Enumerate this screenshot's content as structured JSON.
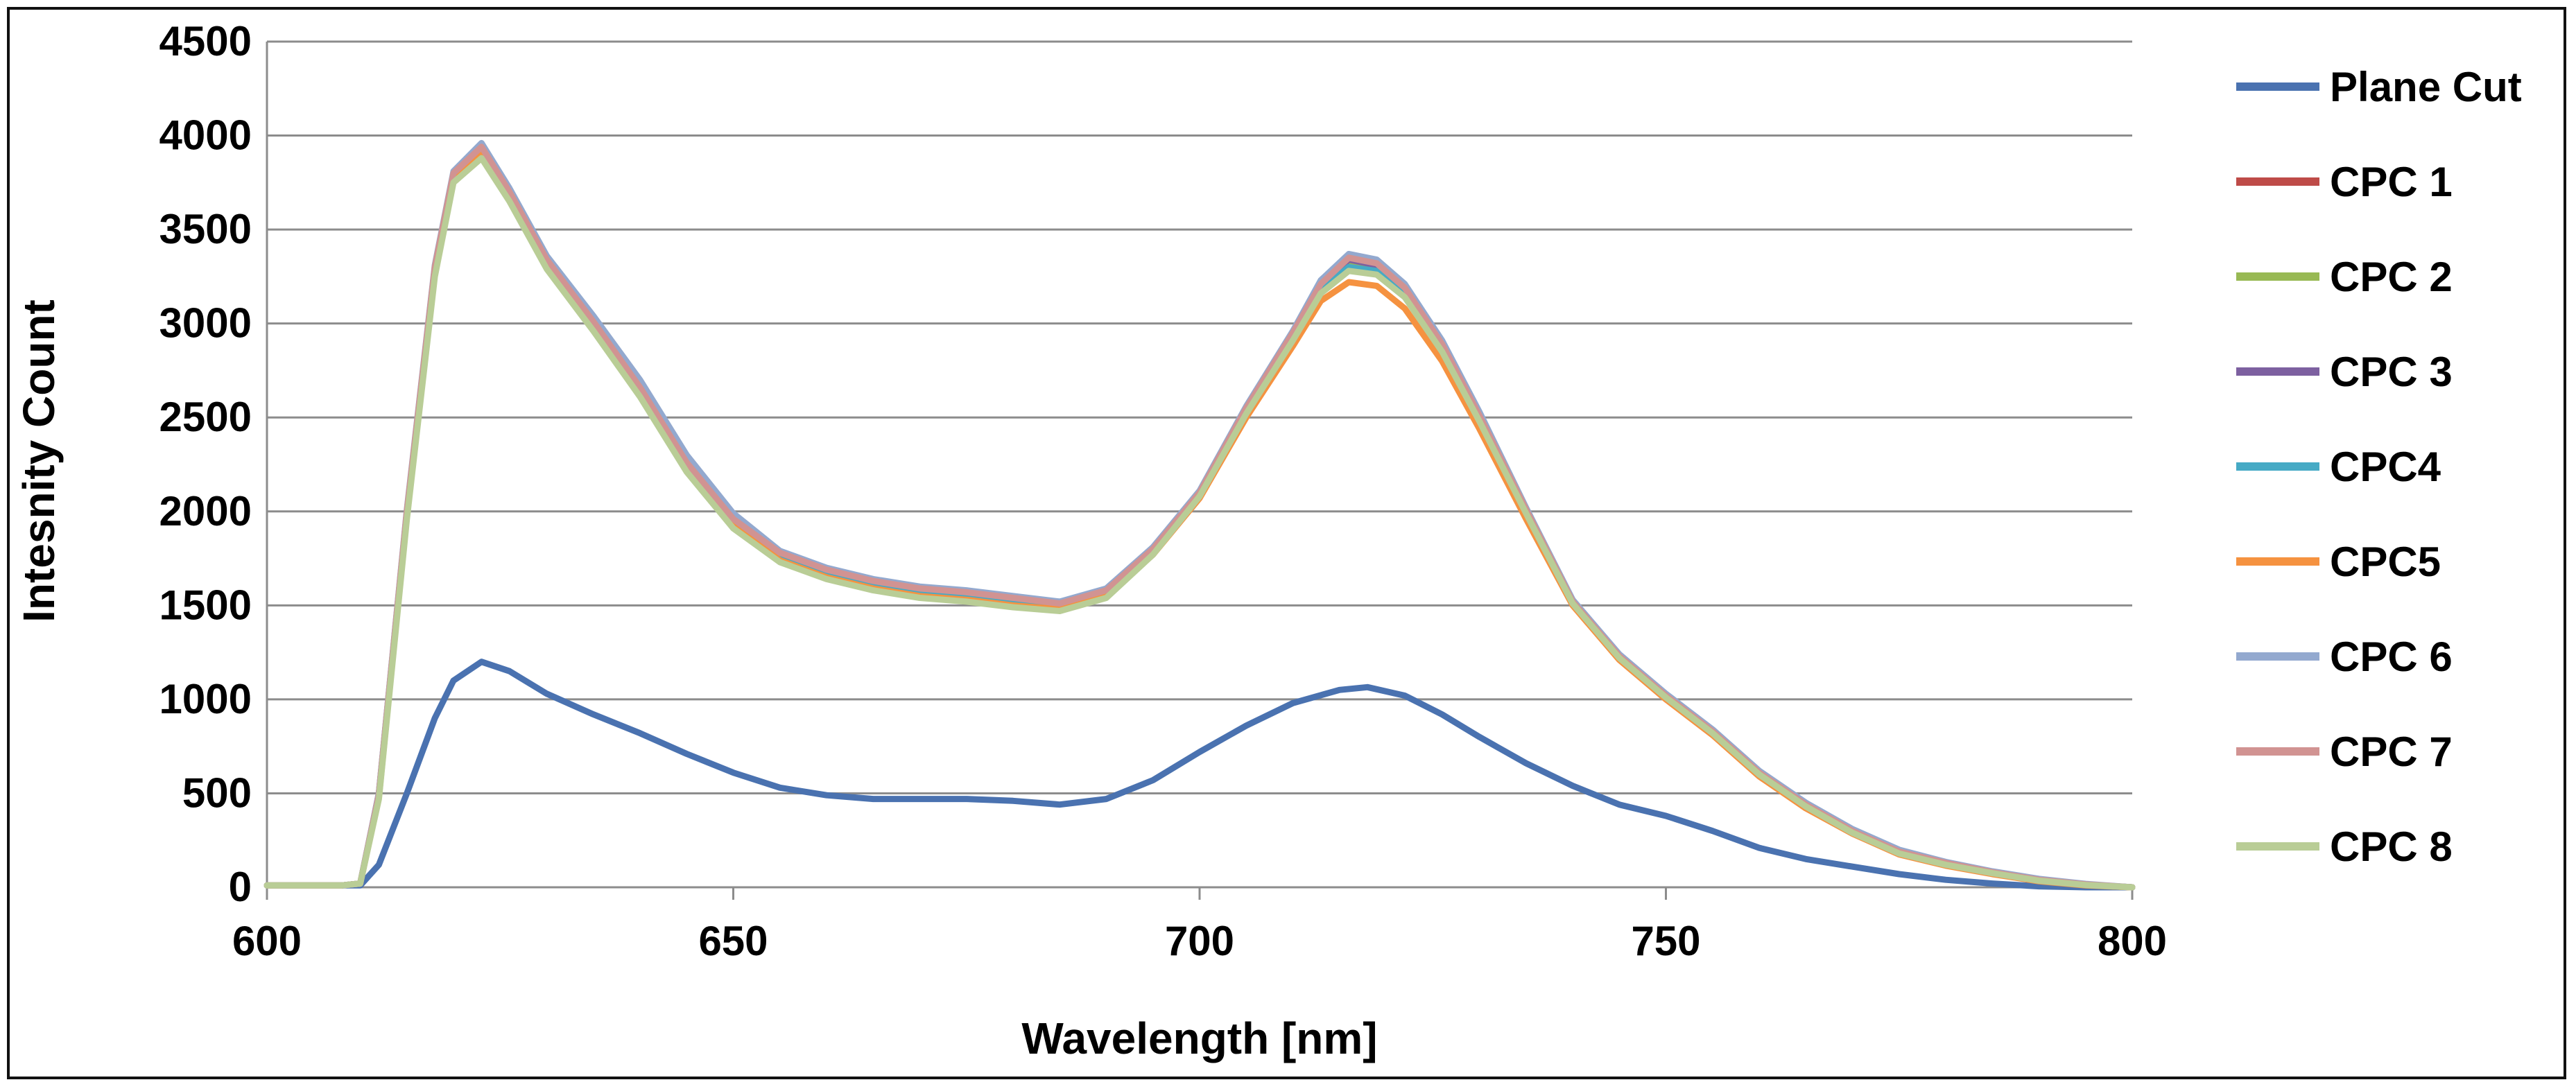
{
  "chart_data": {
    "type": "line",
    "title": "",
    "xlabel": "Wavelength  [nm]",
    "ylabel": "Intesnity Count",
    "xlim": [
      600,
      800
    ],
    "ylim": [
      0,
      4500
    ],
    "x_ticks": [
      600,
      650,
      700,
      750,
      800
    ],
    "y_ticks": [
      0,
      500,
      1000,
      1500,
      2000,
      2500,
      3000,
      3500,
      4000,
      4500
    ],
    "grid": "horizontal",
    "legend_position": "right",
    "series": [
      {
        "name": "Plane Cut",
        "color": "#4a72b0",
        "x": [
          600,
          608,
          610,
          612,
          615,
          618,
          620,
          623,
          626,
          630,
          635,
          640,
          645,
          650,
          655,
          660,
          665,
          670,
          675,
          680,
          685,
          690,
          695,
          700,
          705,
          710,
          715,
          718,
          722,
          726,
          730,
          735,
          740,
          745,
          750,
          755,
          760,
          765,
          770,
          775,
          780,
          785,
          790,
          795,
          800
        ],
        "values": [
          10,
          10,
          10,
          120,
          500,
          900,
          1100,
          1200,
          1150,
          1030,
          920,
          820,
          710,
          610,
          530,
          490,
          470,
          470,
          470,
          460,
          440,
          470,
          570,
          720,
          860,
          980,
          1050,
          1065,
          1020,
          920,
          800,
          660,
          540,
          440,
          380,
          300,
          210,
          150,
          110,
          70,
          40,
          20,
          5,
          0,
          0
        ]
      },
      {
        "name": "CPC 1",
        "color": "#be4b48",
        "x": [
          600,
          608,
          610,
          612,
          615,
          618,
          620,
          623,
          626,
          630,
          635,
          640,
          645,
          650,
          655,
          660,
          665,
          670,
          675,
          680,
          685,
          690,
          695,
          700,
          705,
          710,
          713,
          716,
          719,
          722,
          726,
          730,
          735,
          740,
          745,
          750,
          755,
          760,
          765,
          770,
          775,
          780,
          785,
          790,
          795,
          800
        ],
        "values": [
          10,
          10,
          20,
          500,
          2000,
          3300,
          3800,
          3950,
          3700,
          3330,
          3000,
          2650,
          2250,
          1950,
          1770,
          1680,
          1620,
          1580,
          1560,
          1530,
          1510,
          1580,
          1800,
          2100,
          2550,
          2950,
          3200,
          3330,
          3300,
          3170,
          2870,
          2500,
          2000,
          1520,
          1230,
          1020,
          830,
          610,
          440,
          300,
          190,
          130,
          80,
          40,
          15,
          0
        ]
      },
      {
        "name": "CPC 2",
        "color": "#98b954",
        "x": [
          600,
          608,
          610,
          612,
          615,
          618,
          620,
          623,
          626,
          630,
          635,
          640,
          645,
          650,
          655,
          660,
          665,
          670,
          675,
          680,
          685,
          690,
          695,
          700,
          705,
          710,
          713,
          716,
          719,
          722,
          726,
          730,
          735,
          740,
          745,
          750,
          755,
          760,
          765,
          770,
          775,
          780,
          785,
          790,
          795,
          800
        ],
        "values": [
          10,
          10,
          20,
          480,
          1980,
          3280,
          3780,
          3920,
          3680,
          3310,
          2980,
          2630,
          2230,
          1930,
          1750,
          1660,
          1600,
          1560,
          1540,
          1510,
          1490,
          1560,
          1790,
          2090,
          2540,
          2940,
          3190,
          3320,
          3290,
          3160,
          2860,
          2490,
          1990,
          1510,
          1220,
          1010,
          820,
          600,
          430,
          290,
          180,
          120,
          75,
          35,
          12,
          0
        ]
      },
      {
        "name": "CPC 3",
        "color": "#7d60a0",
        "x": [
          600,
          608,
          610,
          612,
          615,
          618,
          620,
          623,
          626,
          630,
          635,
          640,
          645,
          650,
          655,
          660,
          665,
          670,
          675,
          680,
          685,
          690,
          695,
          700,
          705,
          710,
          713,
          716,
          719,
          722,
          726,
          730,
          735,
          740,
          745,
          750,
          755,
          760,
          765,
          770,
          775,
          780,
          785,
          790,
          795,
          800
        ],
        "values": [
          10,
          10,
          20,
          490,
          1990,
          3290,
          3790,
          3940,
          3690,
          3320,
          2990,
          2640,
          2240,
          1940,
          1760,
          1670,
          1610,
          1570,
          1550,
          1520,
          1500,
          1570,
          1800,
          2100,
          2550,
          2950,
          3210,
          3340,
          3310,
          3180,
          2880,
          2500,
          2000,
          1520,
          1230,
          1020,
          830,
          610,
          440,
          300,
          190,
          130,
          80,
          40,
          15,
          0
        ]
      },
      {
        "name": "CPC4",
        "color": "#46aac5",
        "x": [
          600,
          608,
          610,
          612,
          615,
          618,
          620,
          623,
          626,
          630,
          635,
          640,
          645,
          650,
          655,
          660,
          665,
          670,
          675,
          680,
          685,
          690,
          695,
          700,
          705,
          710,
          713,
          716,
          719,
          722,
          726,
          730,
          735,
          740,
          745,
          750,
          755,
          760,
          765,
          770,
          775,
          780,
          785,
          790,
          795,
          800
        ],
        "values": [
          10,
          10,
          20,
          490,
          1990,
          3290,
          3790,
          3930,
          3690,
          3320,
          2990,
          2640,
          2240,
          1940,
          1760,
          1670,
          1610,
          1570,
          1550,
          1520,
          1500,
          1570,
          1790,
          2090,
          2530,
          2930,
          3180,
          3300,
          3280,
          3150,
          2860,
          2490,
          1990,
          1510,
          1220,
          1010,
          820,
          600,
          430,
          290,
          180,
          120,
          75,
          35,
          12,
          0
        ]
      },
      {
        "name": "CPC5",
        "color": "#f59240",
        "x": [
          600,
          608,
          610,
          612,
          615,
          618,
          620,
          623,
          626,
          630,
          635,
          640,
          645,
          650,
          655,
          660,
          665,
          670,
          675,
          680,
          685,
          690,
          695,
          700,
          705,
          710,
          713,
          716,
          719,
          722,
          726,
          730,
          735,
          740,
          745,
          750,
          755,
          760,
          765,
          770,
          775,
          780,
          785,
          790,
          795,
          800
        ],
        "values": [
          10,
          10,
          20,
          480,
          1980,
          3270,
          3770,
          3910,
          3670,
          3300,
          2970,
          2620,
          2220,
          1920,
          1740,
          1650,
          1590,
          1550,
          1530,
          1500,
          1480,
          1550,
          1770,
          2070,
          2500,
          2880,
          3120,
          3220,
          3200,
          3080,
          2800,
          2440,
          1960,
          1500,
          1210,
          1000,
          810,
          590,
          420,
          285,
          175,
          115,
          70,
          32,
          10,
          0
        ]
      },
      {
        "name": "CPC 6",
        "color": "#93a9cf",
        "x": [
          600,
          608,
          610,
          612,
          615,
          618,
          620,
          623,
          626,
          630,
          635,
          640,
          645,
          650,
          655,
          660,
          665,
          670,
          675,
          680,
          685,
          690,
          695,
          700,
          705,
          710,
          713,
          716,
          719,
          722,
          726,
          730,
          735,
          740,
          745,
          750,
          755,
          760,
          765,
          770,
          775,
          780,
          785,
          790,
          795,
          800
        ],
        "values": [
          10,
          10,
          20,
          500,
          2010,
          3310,
          3810,
          3960,
          3720,
          3360,
          3040,
          2700,
          2300,
          1990,
          1790,
          1700,
          1640,
          1600,
          1580,
          1550,
          1520,
          1590,
          1810,
          2110,
          2560,
          2960,
          3230,
          3370,
          3340,
          3210,
          2910,
          2530,
          2020,
          1530,
          1240,
          1030,
          840,
          620,
          450,
          310,
          200,
          135,
          85,
          45,
          18,
          0
        ]
      },
      {
        "name": "CPC 7",
        "color": "#d19392",
        "x": [
          600,
          608,
          610,
          612,
          615,
          618,
          620,
          623,
          626,
          630,
          635,
          640,
          645,
          650,
          655,
          660,
          665,
          670,
          675,
          680,
          685,
          690,
          695,
          700,
          705,
          710,
          713,
          716,
          719,
          722,
          726,
          730,
          735,
          740,
          745,
          750,
          755,
          760,
          765,
          770,
          775,
          780,
          785,
          790,
          795,
          800
        ],
        "values": [
          10,
          10,
          20,
          490,
          2000,
          3300,
          3800,
          3940,
          3700,
          3340,
          3010,
          2660,
          2260,
          1960,
          1780,
          1690,
          1630,
          1590,
          1570,
          1540,
          1510,
          1580,
          1800,
          2100,
          2550,
          2950,
          3210,
          3350,
          3320,
          3190,
          2890,
          2510,
          2010,
          1520,
          1230,
          1020,
          830,
          610,
          440,
          300,
          190,
          130,
          80,
          40,
          15,
          0
        ]
      },
      {
        "name": "CPC 8",
        "color": "#b9cd96",
        "x": [
          600,
          608,
          610,
          612,
          615,
          618,
          620,
          623,
          626,
          630,
          635,
          640,
          645,
          650,
          655,
          660,
          665,
          670,
          675,
          680,
          685,
          690,
          695,
          700,
          705,
          710,
          713,
          716,
          719,
          722,
          726,
          730,
          735,
          740,
          745,
          750,
          755,
          760,
          765,
          770,
          775,
          780,
          785,
          790,
          795,
          800
        ],
        "values": [
          10,
          10,
          20,
          470,
          1960,
          3250,
          3750,
          3880,
          3650,
          3290,
          2960,
          2610,
          2210,
          1910,
          1730,
          1640,
          1580,
          1540,
          1520,
          1490,
          1470,
          1540,
          1770,
          2080,
          2520,
          2910,
          3160,
          3280,
          3260,
          3140,
          2850,
          2480,
          1990,
          1510,
          1220,
          1010,
          820,
          600,
          430,
          290,
          180,
          120,
          75,
          35,
          12,
          0
        ]
      }
    ]
  }
}
